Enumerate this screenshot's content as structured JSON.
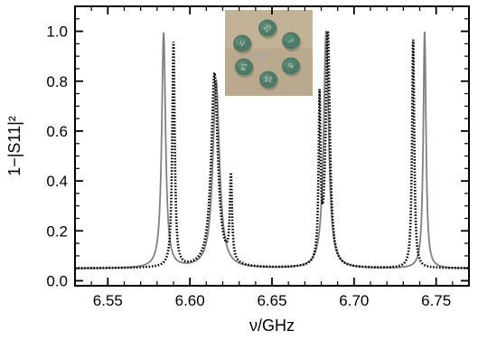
{
  "chart_data": {
    "type": "line",
    "xlabel": "ν/GHz",
    "ylabel": "1−|S11|²",
    "xlim": [
      6.53,
      6.77
    ],
    "ylim": [
      -0.02,
      1.1
    ],
    "x_ticks": [
      "6.55",
      "6.60",
      "6.65",
      "6.70",
      "6.75"
    ],
    "x_tick_values": [
      6.55,
      6.6,
      6.65,
      6.7,
      6.75
    ],
    "y_ticks": [
      "0.0",
      "0.2",
      "0.4",
      "0.6",
      "0.8",
      "1.0"
    ],
    "y_tick_values": [
      0.0,
      0.2,
      0.4,
      0.6,
      0.8,
      1.0
    ],
    "grid": false,
    "series": [
      {
        "style": "solid",
        "color": "#808080",
        "baseline": 0.048,
        "peaks": [
          {
            "x": 6.584,
            "y": 0.99,
            "w": 0.0014
          },
          {
            "x": 6.616,
            "y": 0.8,
            "w": 0.0024
          },
          {
            "x": 6.683,
            "y": 1.0,
            "w": 0.0018
          },
          {
            "x": 6.743,
            "y": 1.0,
            "w": 0.001
          }
        ]
      },
      {
        "style": "dotted",
        "color": "#000000",
        "baseline": 0.05,
        "peaks": [
          {
            "x": 6.59,
            "y": 0.95,
            "w": 0.0009
          },
          {
            "x": 6.615,
            "y": 0.83,
            "w": 0.0024
          },
          {
            "x": 6.625,
            "y": 0.39,
            "w": 0.0008
          },
          {
            "x": 6.679,
            "y": 0.69,
            "w": 0.0007
          },
          {
            "x": 6.684,
            "y": 1.0,
            "w": 0.0015
          },
          {
            "x": 6.736,
            "y": 0.97,
            "w": 0.0008
          }
        ]
      }
    ]
  },
  "inset_photo": {
    "description_icon": "photo-of-six-disks",
    "disk_marks": [
      "25",
      "V",
      "7",
      "14",
      "5",
      "15"
    ]
  }
}
